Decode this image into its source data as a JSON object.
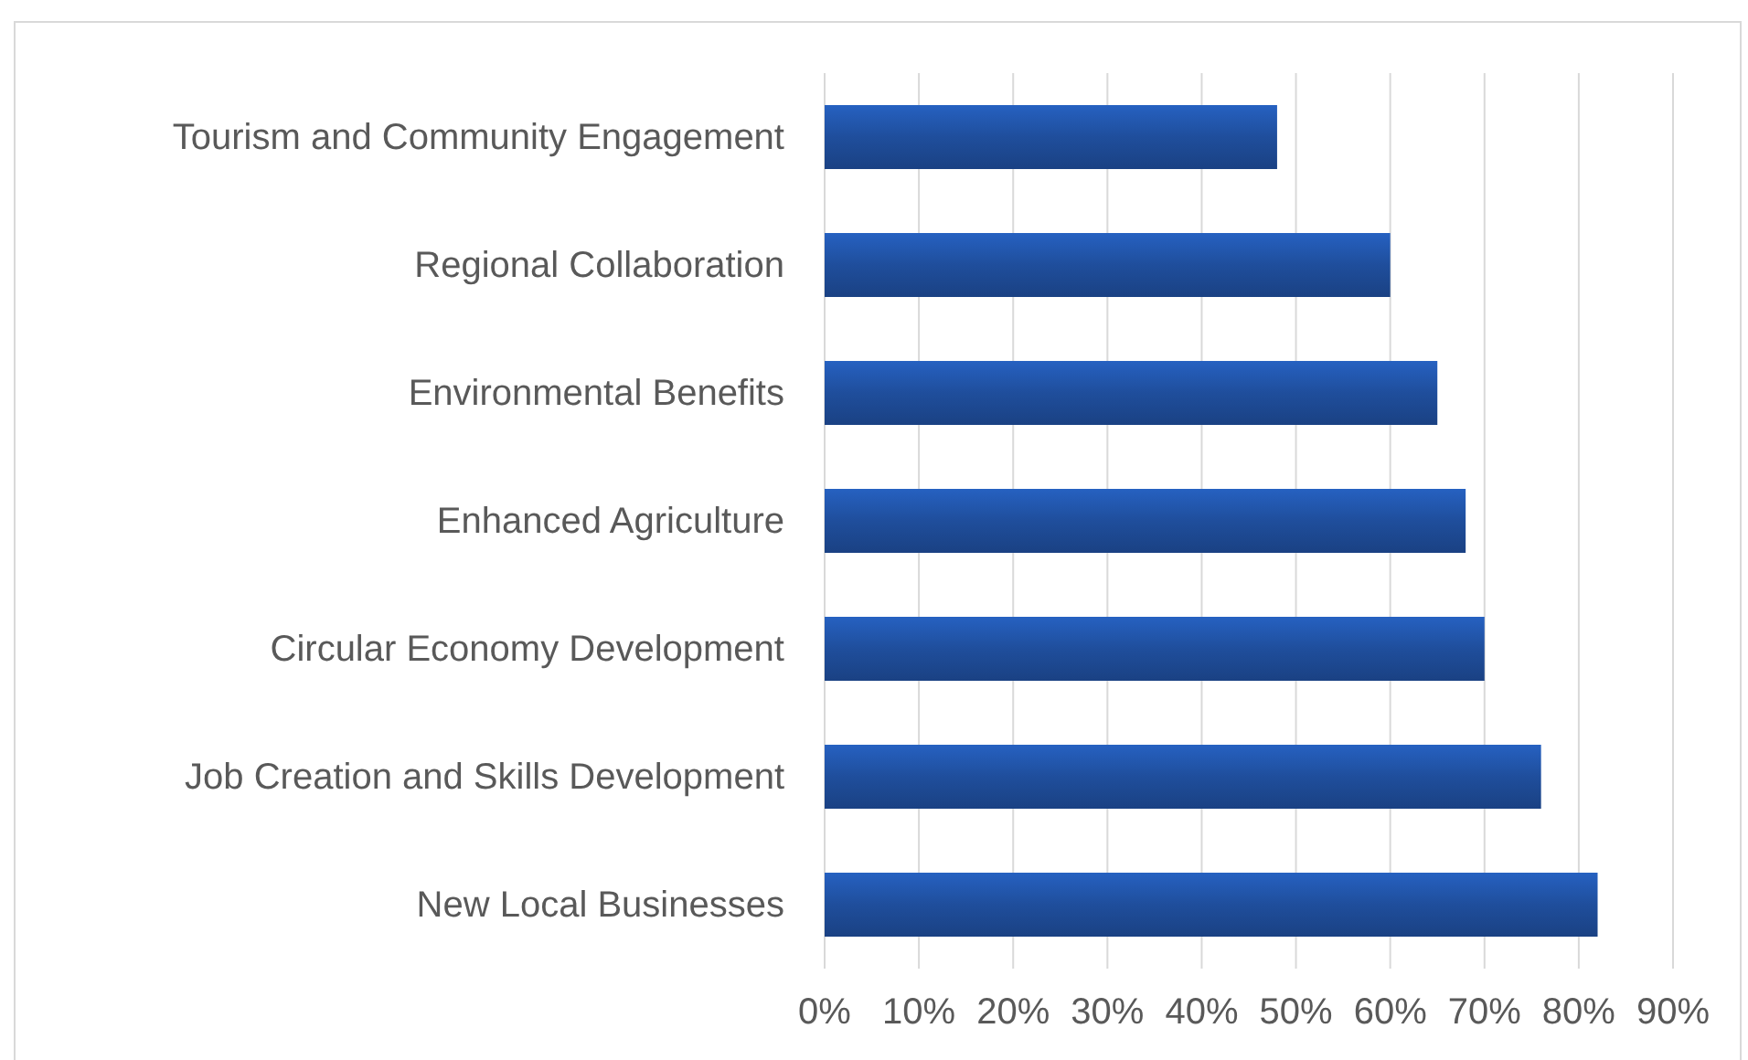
{
  "chart_data": {
    "type": "bar",
    "orientation": "horizontal",
    "categories": [
      "Tourism and Community Engagement",
      "Regional Collaboration",
      "Environmental Benefits",
      "Enhanced Agriculture",
      "Circular Economy Development",
      "Job Creation and Skills Development",
      "New Local Businesses"
    ],
    "values": [
      48,
      60,
      65,
      68,
      70,
      76,
      82
    ],
    "color": "#1f4e9c",
    "xlim": [
      0,
      90
    ],
    "xticks": [
      {
        "value": 0,
        "label": "0%"
      },
      {
        "value": 10,
        "label": "10%"
      },
      {
        "value": 20,
        "label": "20%"
      },
      {
        "value": 30,
        "label": "30%"
      },
      {
        "value": 40,
        "label": "40%"
      },
      {
        "value": 50,
        "label": "50%"
      },
      {
        "value": 60,
        "label": "60%"
      },
      {
        "value": 70,
        "label": "70%"
      },
      {
        "value": 80,
        "label": "80%"
      },
      {
        "value": 90,
        "label": "90%"
      }
    ],
    "grid": "x"
  }
}
